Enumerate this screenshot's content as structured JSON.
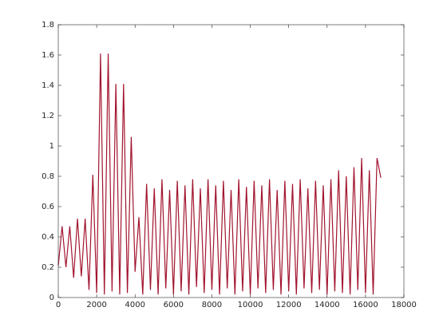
{
  "chart_data": {
    "type": "line",
    "x": [
      0,
      200,
      400,
      600,
      800,
      1000,
      1200,
      1400,
      1600,
      1800,
      2000,
      2200,
      2400,
      2600,
      2800,
      3000,
      3200,
      3400,
      3600,
      3800,
      4000,
      4200,
      4400,
      4600,
      4800,
      5000,
      5200,
      5400,
      5600,
      5800,
      6000,
      6200,
      6400,
      6600,
      6800,
      7000,
      7200,
      7400,
      7600,
      7800,
      8000,
      8200,
      8400,
      8600,
      8800,
      9000,
      9200,
      9400,
      9600,
      9800,
      10000,
      10200,
      10400,
      10600,
      10800,
      11000,
      11200,
      11400,
      11600,
      11800,
      12000,
      12200,
      12400,
      12600,
      12800,
      13000,
      13200,
      13400,
      13600,
      13800,
      14000,
      14200,
      14400,
      14600,
      14800,
      15000,
      15200,
      15400,
      15600,
      15800,
      16000,
      16200,
      16400,
      16600,
      16800
    ],
    "series": [
      {
        "color": "#a2142f",
        "values": [
          0.21,
          0.47,
          0.2,
          0.47,
          0.13,
          0.52,
          0.14,
          0.52,
          0.05,
          0.81,
          0.03,
          1.61,
          0.02,
          1.61,
          0.04,
          1.41,
          0.02,
          1.41,
          0.03,
          1.06,
          0.17,
          0.53,
          0.02,
          0.75,
          0.05,
          0.72,
          0.02,
          0.78,
          0.06,
          0.71,
          0.02,
          0.77,
          0.04,
          0.74,
          0.02,
          0.78,
          0.07,
          0.72,
          0.03,
          0.78,
          0.05,
          0.74,
          0.02,
          0.77,
          0.06,
          0.71,
          0.02,
          0.78,
          0.04,
          0.73,
          0.02,
          0.77,
          0.06,
          0.74,
          0.03,
          0.78,
          0.05,
          0.71,
          0.02,
          0.77,
          0.04,
          0.75,
          0.02,
          0.78,
          0.06,
          0.72,
          0.03,
          0.77,
          0.05,
          0.74,
          0.02,
          0.78,
          0.04,
          0.84,
          0.03,
          0.8,
          0.02,
          0.86,
          0.05,
          0.92,
          0.03,
          0.84,
          0.02,
          0.92,
          0.79
        ]
      }
    ],
    "xlim": [
      0,
      18000
    ],
    "xticks": [
      0,
      2000,
      4000,
      6000,
      8000,
      10000,
      12000,
      14000,
      16000,
      18000
    ],
    "ylim": [
      0,
      1.8
    ],
    "yticks": [
      0,
      0.2,
      0.4,
      0.6,
      0.8,
      1,
      1.2,
      1.4,
      1.6,
      1.8
    ]
  }
}
